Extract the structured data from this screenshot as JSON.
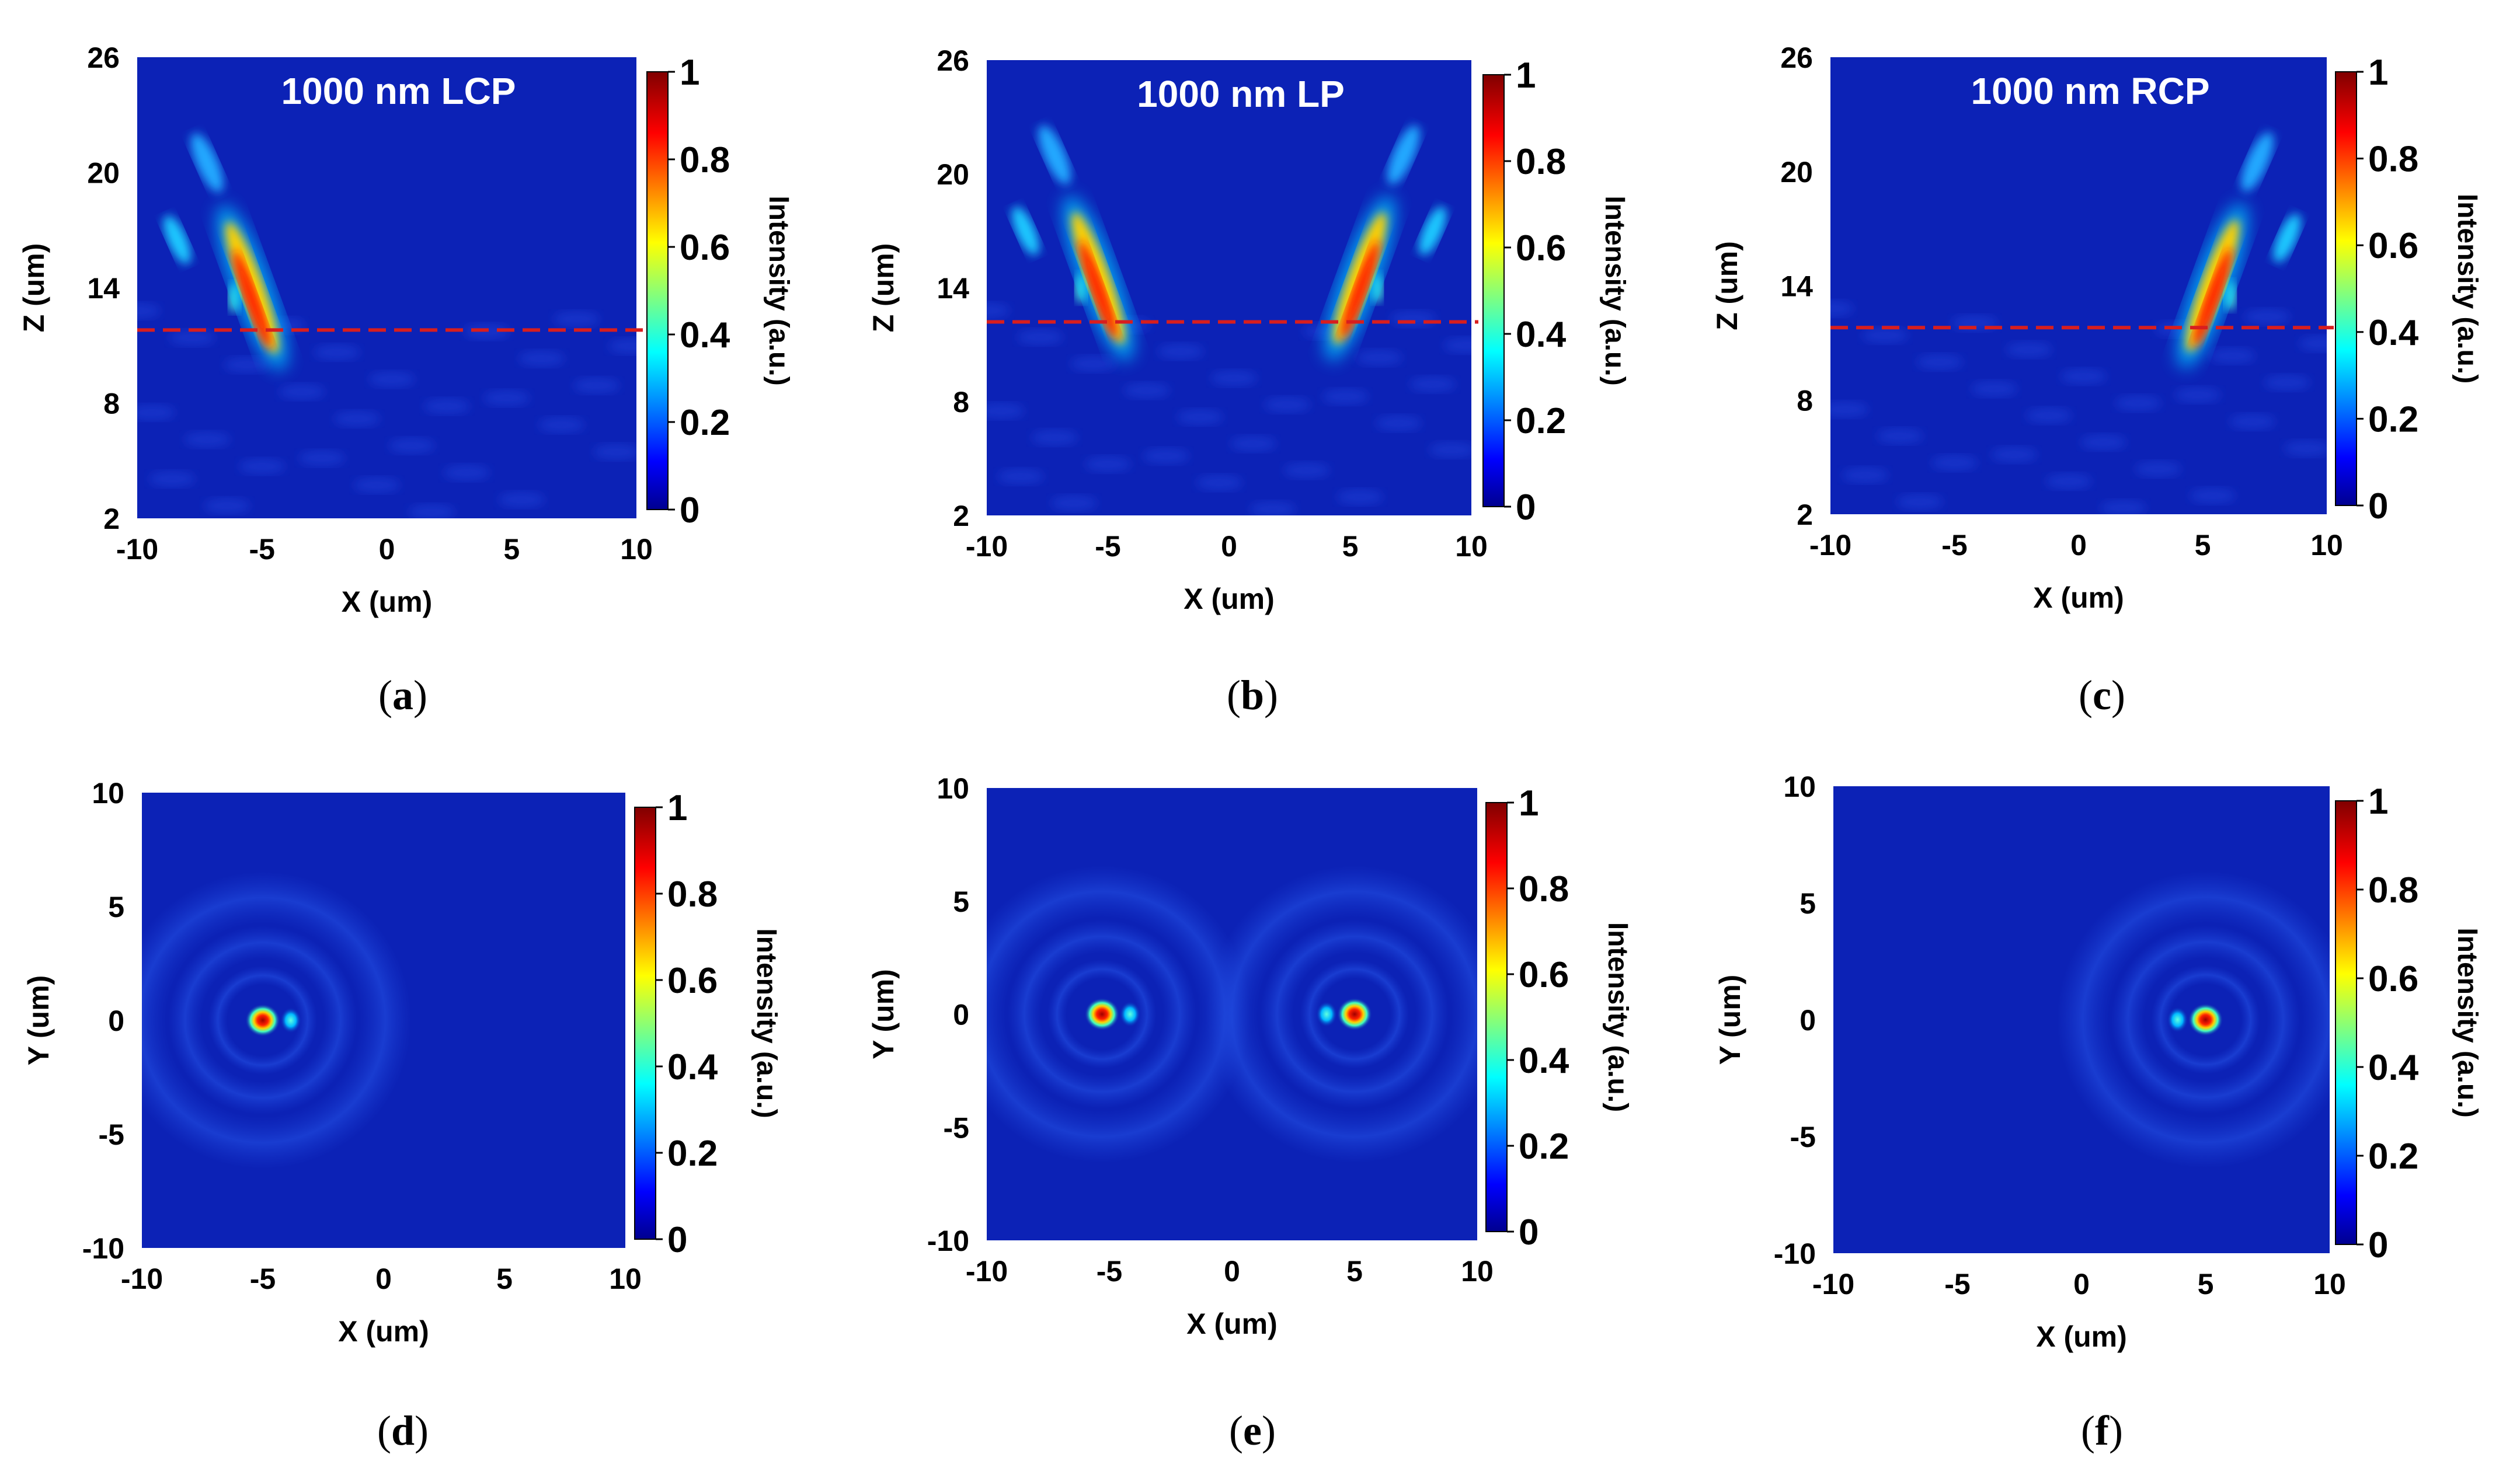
{
  "chart_data": [
    {
      "id": "a",
      "caption": "(a)",
      "caption_letter": "a",
      "type": "heatmap",
      "view": "xz",
      "title": "1000 nm LCP",
      "xlabel": "X (um)",
      "ylabel": "Z (um)",
      "xlim": [
        -10,
        10
      ],
      "ylim": [
        2,
        26
      ],
      "xticks": [
        "-10",
        "-5",
        "0",
        "5",
        "10"
      ],
      "yticks": [
        "2",
        "8",
        "14",
        "20",
        "26"
      ],
      "colorbar": {
        "label": "Intensity (a.u.)",
        "range": [
          0,
          1
        ],
        "ticks": [
          "0",
          "0.2",
          "0.4",
          "0.6",
          "0.8",
          "1"
        ]
      },
      "reference_line_z": 11.8,
      "focal_spots": [
        {
          "x": -5,
          "z": 11
        }
      ]
    },
    {
      "id": "b",
      "caption": "(b)",
      "caption_letter": "b",
      "type": "heatmap",
      "view": "xz",
      "title": "1000 nm LP",
      "xlabel": "X (um)",
      "ylabel": "Z (um)",
      "xlim": [
        -10,
        10
      ],
      "ylim": [
        2,
        26
      ],
      "xticks": [
        "-10",
        "-5",
        "0",
        "5",
        "10"
      ],
      "yticks": [
        "2",
        "8",
        "14",
        "20",
        "26"
      ],
      "colorbar": {
        "label": "Intensity (a.u.)",
        "range": [
          0,
          1
        ],
        "ticks": [
          "0",
          "0.2",
          "0.4",
          "0.6",
          "0.8",
          "1"
        ]
      },
      "reference_line_z": 12.2,
      "focal_spots": [
        {
          "x": -5,
          "z": 11.5
        },
        {
          "x": 5,
          "z": 11.5
        }
      ]
    },
    {
      "id": "c",
      "caption": "(c)",
      "caption_letter": "c",
      "type": "heatmap",
      "view": "xz",
      "title": "1000 nm RCP",
      "xlabel": "X (um)",
      "ylabel": "Z (um)",
      "xlim": [
        -10,
        10
      ],
      "ylim": [
        2,
        26
      ],
      "xticks": [
        "-10",
        "-5",
        "0",
        "5",
        "10"
      ],
      "yticks": [
        "2",
        "8",
        "14",
        "20",
        "26"
      ],
      "colorbar": {
        "label": "Intensity (a.u.)",
        "range": [
          0,
          1
        ],
        "ticks": [
          "0",
          "0.2",
          "0.4",
          "0.6",
          "0.8",
          "1"
        ]
      },
      "reference_line_z": 11.8,
      "focal_spots": [
        {
          "x": 5,
          "z": 11
        }
      ]
    },
    {
      "id": "d",
      "caption": "(d)",
      "caption_letter": "d",
      "type": "heatmap",
      "view": "xy",
      "title": "",
      "xlabel": "X (um)",
      "ylabel": "Y (um)",
      "xlim": [
        -10,
        10
      ],
      "ylim": [
        -10,
        10
      ],
      "xticks": [
        "-10",
        "-5",
        "0",
        "5",
        "10"
      ],
      "yticks": [
        "-10",
        "-5",
        "0",
        "5",
        "10"
      ],
      "colorbar": {
        "label": "Intensity (a.u.)",
        "range": [
          0,
          1
        ],
        "ticks": [
          "0",
          "0.2",
          "0.4",
          "0.6",
          "0.8",
          "1"
        ]
      },
      "focal_spots": [
        {
          "x": -5,
          "y": 0
        }
      ]
    },
    {
      "id": "e",
      "caption": "(e)",
      "caption_letter": "e",
      "type": "heatmap",
      "view": "xy",
      "title": "",
      "xlabel": "X (um)",
      "ylabel": "Y (um)",
      "xlim": [
        -10,
        10
      ],
      "ylim": [
        -10,
        10
      ],
      "xticks": [
        "-10",
        "-5",
        "0",
        "5",
        "10"
      ],
      "yticks": [
        "-10",
        "-5",
        "0",
        "5",
        "10"
      ],
      "colorbar": {
        "label": "Intensity (a.u.)",
        "range": [
          0,
          1
        ],
        "ticks": [
          "0",
          "0.2",
          "0.4",
          "0.6",
          "0.8",
          "1"
        ]
      },
      "focal_spots": [
        {
          "x": -5.3,
          "y": 0
        },
        {
          "x": 5,
          "y": 0
        }
      ]
    },
    {
      "id": "f",
      "caption": "(f)",
      "caption_letter": "f",
      "type": "heatmap",
      "view": "xy",
      "title": "",
      "xlabel": "X (um)",
      "ylabel": "Y (um)",
      "xlim": [
        -10,
        10
      ],
      "ylim": [
        -10,
        10
      ],
      "xticks": [
        "-10",
        "-5",
        "0",
        "5",
        "10"
      ],
      "yticks": [
        "-10",
        "-5",
        "0",
        "5",
        "10"
      ],
      "colorbar": {
        "label": "Intensity (a.u.)",
        "range": [
          0,
          1
        ],
        "ticks": [
          "0",
          "0.2",
          "0.4",
          "0.6",
          "0.8",
          "1"
        ]
      },
      "focal_spots": [
        {
          "x": 5,
          "y": 0
        }
      ]
    }
  ],
  "colors": {
    "background_low": "#0c22b6",
    "jet_dark_blue": "#00008f",
    "jet_dark_red": "#800000",
    "reference_line": "#d81e1e"
  }
}
